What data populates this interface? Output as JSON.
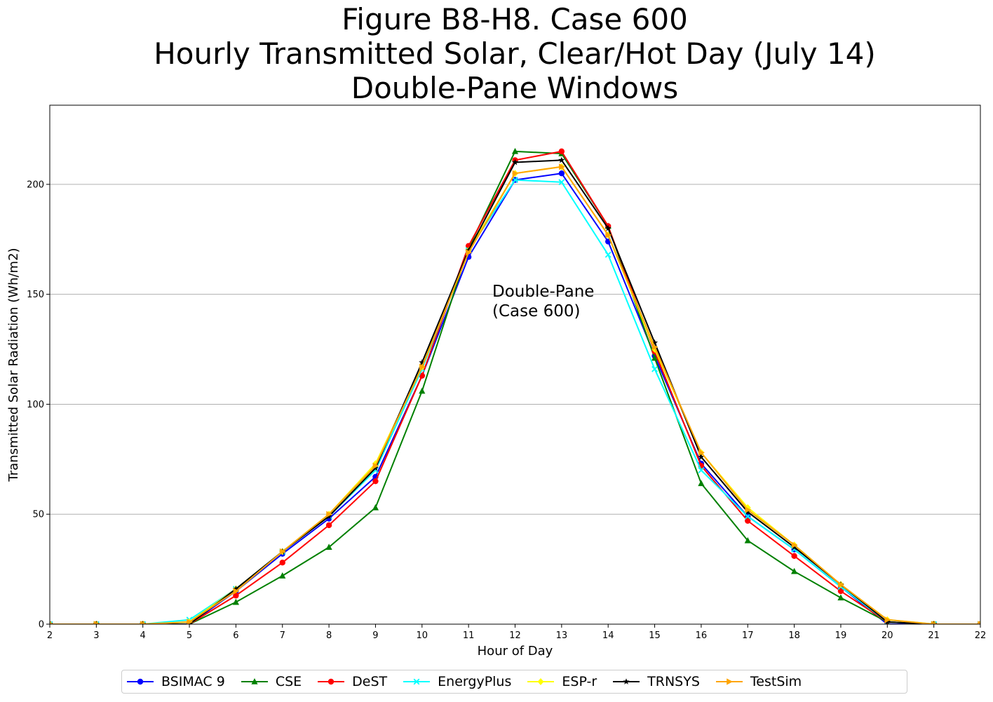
{
  "chart_data": {
    "type": "line",
    "title": [
      "Figure B8-H8. Case 600",
      "Hourly Transmitted Solar, Clear/Hot Day (July 14)",
      "Double-Pane Windows"
    ],
    "xlabel": "Hour of Day",
    "ylabel": "Transmitted Solar Radiation (Wh/m2)",
    "xlim": [
      2,
      22
    ],
    "ylim": [
      0,
      236
    ],
    "x": [
      2,
      3,
      4,
      5,
      6,
      7,
      8,
      9,
      10,
      11,
      12,
      13,
      14,
      15,
      16,
      17,
      18,
      19,
      20,
      21,
      22
    ],
    "xticks": [
      "2",
      "3",
      "4",
      "5",
      "6",
      "7",
      "8",
      "9",
      "10",
      "11",
      "12",
      "13",
      "14",
      "15",
      "16",
      "17",
      "18",
      "19",
      "20",
      "21",
      "22"
    ],
    "yticks": [
      0,
      50,
      100,
      150,
      200
    ],
    "grid": "horizontal",
    "annotation": [
      "Double-Pane",
      "(Case 600)"
    ],
    "series": [
      {
        "name": "BSIMAC 9",
        "color": "#0000ff",
        "marker": "circle",
        "values": [
          0,
          0,
          0,
          0,
          15,
          32,
          48,
          67,
          113,
          167,
          202,
          205,
          174,
          122,
          73,
          49,
          34,
          17,
          0,
          0,
          0
        ]
      },
      {
        "name": "CSE",
        "color": "#008000",
        "marker": "triangle-up",
        "values": [
          0,
          0,
          0,
          0,
          10,
          22,
          35,
          53,
          106,
          171,
          215,
          214,
          181,
          121,
          64,
          38,
          24,
          12,
          1,
          0,
          0
        ]
      },
      {
        "name": "DeST",
        "color": "#ff0000",
        "marker": "circle",
        "values": [
          0,
          0,
          0,
          0,
          13,
          28,
          45,
          65,
          113,
          172,
          211,
          215,
          181,
          124,
          72,
          47,
          31,
          15,
          1,
          0,
          0
        ]
      },
      {
        "name": "EnergyPlus",
        "color": "#00ffff",
        "marker": "x",
        "values": [
          0,
          0,
          0,
          2,
          16,
          33,
          49,
          70,
          116,
          170,
          202,
          201,
          168,
          116,
          70,
          49,
          34,
          17,
          1,
          0,
          0
        ]
      },
      {
        "name": "ESP-r",
        "color": "#ffff00",
        "marker": "diamond",
        "values": [
          0,
          0,
          0,
          1,
          16,
          33,
          50,
          73,
          117,
          170,
          205,
          208,
          177,
          125,
          78,
          53,
          36,
          18,
          2,
          0,
          0
        ]
      },
      {
        "name": "TRNSYS",
        "color": "#000000",
        "marker": "star",
        "values": [
          0,
          0,
          0,
          0,
          16,
          33,
          49,
          71,
          119,
          170,
          210,
          211,
          180,
          128,
          76,
          51,
          35,
          18,
          1,
          0,
          0
        ]
      },
      {
        "name": "TestSim",
        "color": "#ffa500",
        "marker": "triangle-right",
        "values": [
          0,
          0,
          0,
          1,
          15,
          33,
          50,
          72,
          117,
          169,
          205,
          208,
          177,
          126,
          78,
          52,
          36,
          18,
          2,
          0,
          0
        ]
      }
    ]
  }
}
